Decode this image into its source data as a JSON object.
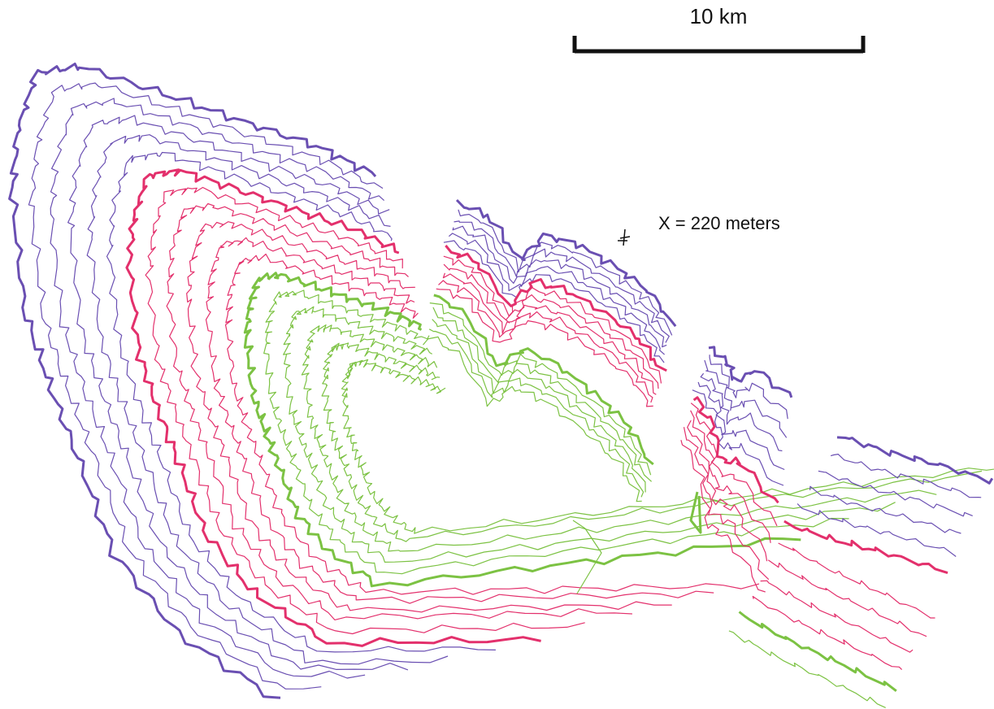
{
  "scale_bar": {
    "label": "10 km"
  },
  "annotation": {
    "label": "X = 220 meters"
  }
}
